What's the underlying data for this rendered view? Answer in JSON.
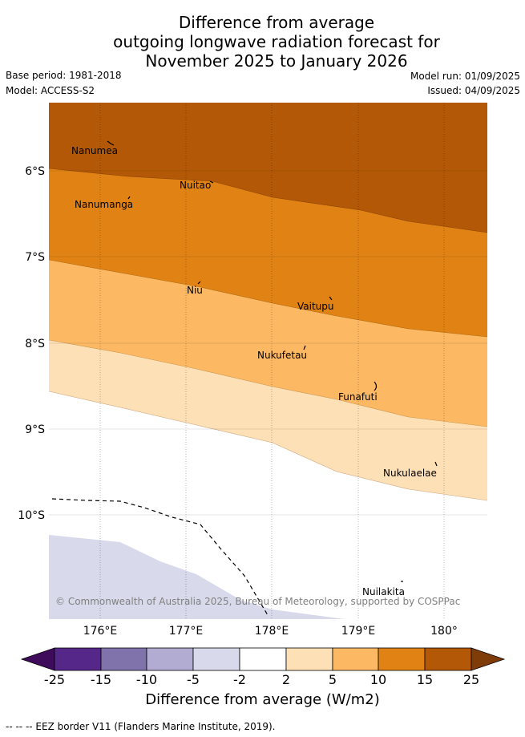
{
  "title": {
    "line1": "Difference from average",
    "line2": "outgoing longwave radiation forecast for",
    "line3": "November 2025 to January 2026"
  },
  "meta": {
    "base_period": "Base period: 1981-2018",
    "model": "Model: ACCESS-S2",
    "model_run": "Model run: 01/09/2025",
    "issued": "Issued: 04/09/2025"
  },
  "map": {
    "lat_labels": [
      "6°S",
      "7°S",
      "8°S",
      "9°S",
      "10°S"
    ],
    "lon_labels": [
      "176°E",
      "177°E",
      "178°E",
      "179°E",
      "180°"
    ],
    "places": {
      "nanumea": "Nanumea",
      "nuitao": "Nuitao",
      "nanumanga": "Nanumanga",
      "niu": "Niu",
      "vaitupu": "Vaitupu",
      "nukufetau": "Nukufetau",
      "funafuti": "Funafuti",
      "nukulaelae": "Nukulaelae",
      "nuilakita": "Nuilakita"
    },
    "copyright": "© Commonwealth of Australia 2025, Bureau of Meteorology, supported by COSPPac",
    "band_colors": [
      "#b35806",
      "#e08214",
      "#fdb863",
      "#fee0b6",
      "#ffffff",
      "#d8daeb"
    ]
  },
  "colorbar": {
    "ticks": [
      "-25",
      "-15",
      "-10",
      "-5",
      "-2",
      "2",
      "5",
      "10",
      "15",
      "25"
    ],
    "colors": [
      "#3f0c5b",
      "#542788",
      "#8073ac",
      "#b2abd2",
      "#d8daeb",
      "#ffffff",
      "#fee0b6",
      "#fdb863",
      "#e08214",
      "#b35806",
      "#7f3b08"
    ],
    "label": "Difference from average (W/m2)"
  },
  "footnote": "-- -- -- EEZ border V11 (Flanders Marine Institute, 2019)."
}
